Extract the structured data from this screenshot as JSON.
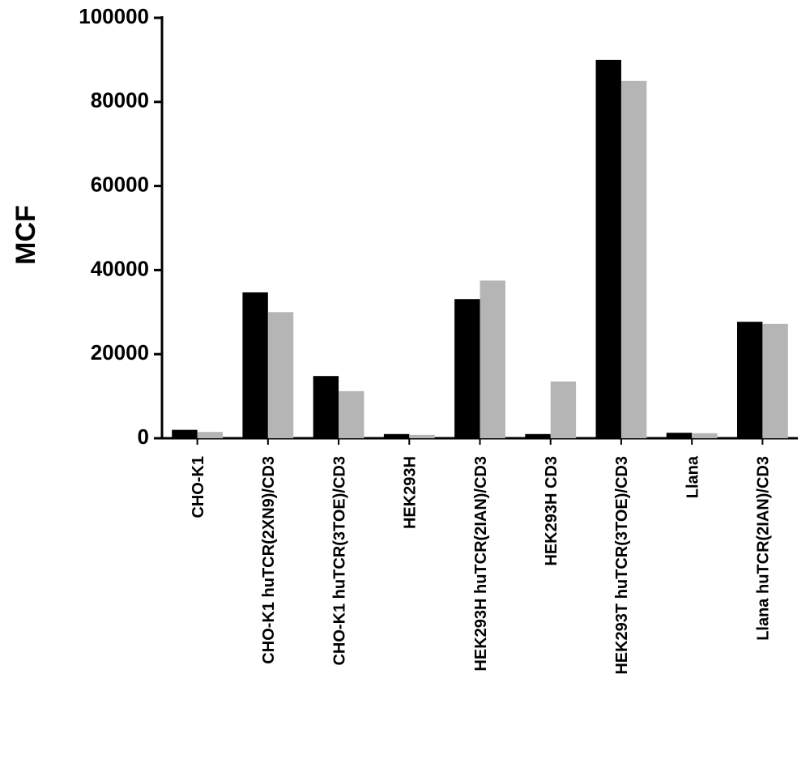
{
  "chart_data": {
    "type": "bar",
    "y_label": "MCF",
    "categories": [
      "CHO-K1",
      "CHO-K1 huTCR(2XN9)/CD3",
      "CHO-K1 huTCR(3TOE)/CD3",
      "HEK293H",
      "HEK293H huTCR(2IAN)/CD3",
      "HEK293H CD3",
      "HEK293T huTCR(3TOE)/CD3",
      "Llana",
      "Llana huTCR(2IAN)/CD3"
    ],
    "series": [
      {
        "color": "#000000",
        "values": [
          2000,
          34700,
          14800,
          1000,
          33100,
          1000,
          90000,
          1300,
          27700
        ]
      },
      {
        "color": "#b5b5b5",
        "values": [
          1500,
          30000,
          11200,
          800,
          37500,
          13500,
          85000,
          1200,
          27200
        ]
      }
    ],
    "ylim": [
      0,
      100000
    ],
    "yticks": [
      0,
      20000,
      40000,
      60000,
      80000,
      100000
    ],
    "grid": false
  }
}
